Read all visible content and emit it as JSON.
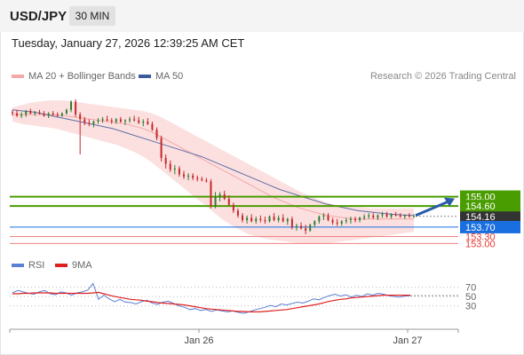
{
  "header": {
    "symbol": "USD/JPY",
    "timeframe": "30 MIN",
    "timestamp": "Tuesday, January 27, 2026 12:39:25 AM CET"
  },
  "legend": {
    "ma20": "MA 20 + Bollinger Bands",
    "ma50": "MA 50",
    "copyright": "Research © 2026 Trading Central",
    "rsi": "RSI",
    "ma9": "9MA"
  },
  "colors": {
    "bull": "#2e7d32",
    "bear": "#c62828",
    "band": "#fbd5d5",
    "ma20": "#f4a8a8",
    "ma50": "#5d6fa6",
    "green_level": "#4a9d00",
    "blue_level": "#1a6fe0",
    "red_level": "#f08080",
    "current_price": "#333333",
    "rsi_line": "#5b7fd4",
    "rsi_ma": "#e02020",
    "arrow": "#2a5ca8"
  },
  "chart_data": [
    {
      "type": "candlestick",
      "title": "USD/JPY 30 MIN",
      "ylim": [
        152.6,
        159.6
      ],
      "x_ticks": [
        "Jan 26",
        "Jan 27"
      ],
      "price_labels": [
        {
          "value": 155.0,
          "text": "155.00",
          "kind": "resistance"
        },
        {
          "value": 154.6,
          "text": "154.60",
          "kind": "resistance"
        },
        {
          "value": 154.16,
          "text": "154.16",
          "kind": "current"
        },
        {
          "value": 153.7,
          "text": "153.70",
          "kind": "pivot"
        },
        {
          "value": 153.3,
          "text": "153.30",
          "kind": "support"
        },
        {
          "value": 153.0,
          "text": "153.00",
          "kind": "support"
        }
      ],
      "candles": [
        [
          158.6,
          158.7,
          158.45,
          158.55
        ],
        [
          158.55,
          158.7,
          158.4,
          158.45
        ],
        [
          158.45,
          158.6,
          158.35,
          158.5
        ],
        [
          158.5,
          158.7,
          158.4,
          158.65
        ],
        [
          158.65,
          158.75,
          158.5,
          158.55
        ],
        [
          158.55,
          158.65,
          158.45,
          158.6
        ],
        [
          158.6,
          158.7,
          158.5,
          158.55
        ],
        [
          158.55,
          158.65,
          158.4,
          158.45
        ],
        [
          158.45,
          158.6,
          158.35,
          158.55
        ],
        [
          158.55,
          158.65,
          158.45,
          158.5
        ],
        [
          158.5,
          158.6,
          158.4,
          158.45
        ],
        [
          158.45,
          158.6,
          158.4,
          158.55
        ],
        [
          158.55,
          158.75,
          158.5,
          158.7
        ],
        [
          158.7,
          159.1,
          158.6,
          159.05
        ],
        [
          159.05,
          159.15,
          158.4,
          158.5
        ],
        [
          158.5,
          158.6,
          156.8,
          158.3
        ],
        [
          158.3,
          158.4,
          158.05,
          158.15
        ],
        [
          158.15,
          158.3,
          158.0,
          158.1
        ],
        [
          158.1,
          158.25,
          157.95,
          158.2
        ],
        [
          158.2,
          158.35,
          158.1,
          158.25
        ],
        [
          158.25,
          158.4,
          158.15,
          158.3
        ],
        [
          158.3,
          158.45,
          158.2,
          158.25
        ],
        [
          158.25,
          158.35,
          158.1,
          158.2
        ],
        [
          158.2,
          158.35,
          158.1,
          158.3
        ],
        [
          158.3,
          158.4,
          158.15,
          158.2
        ],
        [
          158.2,
          158.3,
          158.05,
          158.25
        ],
        [
          158.25,
          158.4,
          158.15,
          158.3
        ],
        [
          158.3,
          158.45,
          158.2,
          158.25
        ],
        [
          158.25,
          158.4,
          158.1,
          158.15
        ],
        [
          158.15,
          158.3,
          158.0,
          158.2
        ],
        [
          158.2,
          158.35,
          158.05,
          158.1
        ],
        [
          158.1,
          158.2,
          157.8,
          157.85
        ],
        [
          157.85,
          157.95,
          157.4,
          157.5
        ],
        [
          157.5,
          157.6,
          156.5,
          156.65
        ],
        [
          156.65,
          156.8,
          156.2,
          156.4
        ],
        [
          156.4,
          156.55,
          156.05,
          156.15
        ],
        [
          156.15,
          156.35,
          155.95,
          156.2
        ],
        [
          156.2,
          156.3,
          155.85,
          155.95
        ],
        [
          155.95,
          156.1,
          155.75,
          155.85
        ],
        [
          155.85,
          156.0,
          155.7,
          155.9
        ],
        [
          155.9,
          156.0,
          155.7,
          155.8
        ],
        [
          155.8,
          155.9,
          155.65,
          155.75
        ],
        [
          155.75,
          155.85,
          155.65,
          155.7
        ],
        [
          155.7,
          155.8,
          155.6,
          155.65
        ],
        [
          155.65,
          155.75,
          154.5,
          154.6
        ],
        [
          154.6,
          155.2,
          154.5,
          155.0
        ],
        [
          155.0,
          155.2,
          154.8,
          155.1
        ],
        [
          155.1,
          155.25,
          154.85,
          154.9
        ],
        [
          154.9,
          155.05,
          154.6,
          154.65
        ],
        [
          154.65,
          154.75,
          154.3,
          154.4
        ],
        [
          154.4,
          154.5,
          154.1,
          154.2
        ],
        [
          154.2,
          154.3,
          153.9,
          154.0
        ],
        [
          154.0,
          154.2,
          153.85,
          154.1
        ],
        [
          154.1,
          154.25,
          153.9,
          153.95
        ],
        [
          153.95,
          154.15,
          153.85,
          154.05
        ],
        [
          154.05,
          154.2,
          153.9,
          154.0
        ],
        [
          154.0,
          154.15,
          153.85,
          153.95
        ],
        [
          153.95,
          154.2,
          153.9,
          154.15
        ],
        [
          154.15,
          154.3,
          153.95,
          154.0
        ],
        [
          154.0,
          154.2,
          153.9,
          154.1
        ],
        [
          154.1,
          154.25,
          153.9,
          153.95
        ],
        [
          153.95,
          154.1,
          153.8,
          154.05
        ],
        [
          154.05,
          154.15,
          153.6,
          153.7
        ],
        [
          153.7,
          153.85,
          153.55,
          153.75
        ],
        [
          153.75,
          153.9,
          153.6,
          153.65
        ],
        [
          153.65,
          153.8,
          153.4,
          153.55
        ],
        [
          153.55,
          153.85,
          153.5,
          153.8
        ],
        [
          153.8,
          154.0,
          153.7,
          153.95
        ],
        [
          153.95,
          154.2,
          153.85,
          154.15
        ],
        [
          154.15,
          154.3,
          154.0,
          154.2
        ],
        [
          154.2,
          154.3,
          153.95,
          154.0
        ],
        [
          154.0,
          154.1,
          153.8,
          153.9
        ],
        [
          153.9,
          154.05,
          153.75,
          153.85
        ],
        [
          153.85,
          154.0,
          153.75,
          153.95
        ],
        [
          153.95,
          154.1,
          153.85,
          154.0
        ],
        [
          154.0,
          154.15,
          153.85,
          154.05
        ],
        [
          154.05,
          154.15,
          153.9,
          154.0
        ],
        [
          154.0,
          154.15,
          153.9,
          154.1
        ],
        [
          154.1,
          154.25,
          154.0,
          154.15
        ],
        [
          154.15,
          154.3,
          154.05,
          154.2
        ],
        [
          154.2,
          154.3,
          154.05,
          154.1
        ],
        [
          154.1,
          154.25,
          154.0,
          154.2
        ],
        [
          154.2,
          154.35,
          154.1,
          154.25
        ],
        [
          154.25,
          154.35,
          154.1,
          154.15
        ],
        [
          154.15,
          154.3,
          154.05,
          154.25
        ],
        [
          154.25,
          154.35,
          154.15,
          154.2
        ],
        [
          154.2,
          154.3,
          154.1,
          154.15
        ],
        [
          154.15,
          154.25,
          154.05,
          154.2
        ],
        [
          154.2,
          154.3,
          154.1,
          154.15
        ],
        [
          154.15,
          154.25,
          154.1,
          154.16
        ]
      ],
      "bollinger": {
        "upper": [
          158.8,
          158.9,
          159.0,
          159.05,
          159.1,
          159.1,
          159.1,
          159.05,
          159.0,
          158.95,
          158.9,
          158.85,
          158.8,
          158.75,
          158.7,
          158.65,
          158.55,
          158.4,
          158.2,
          158.0,
          157.8,
          157.6,
          157.4,
          157.2,
          157.0,
          156.8,
          156.6,
          156.4,
          156.2,
          156.0,
          155.8,
          155.6,
          155.4,
          155.2,
          155.05,
          154.9,
          154.75,
          154.65,
          154.6,
          154.55,
          154.55,
          154.5,
          154.5,
          154.5,
          154.5,
          154.5,
          154.5
        ],
        "middle": [
          158.5,
          158.5,
          158.5,
          158.5,
          158.5,
          158.48,
          158.45,
          158.4,
          158.35,
          158.3,
          158.25,
          158.2,
          158.15,
          158.1,
          158.0,
          157.9,
          157.75,
          157.55,
          157.35,
          157.15,
          156.95,
          156.75,
          156.55,
          156.35,
          156.15,
          155.95,
          155.75,
          155.55,
          155.35,
          155.15,
          154.95,
          154.8,
          154.65,
          154.5,
          154.4,
          154.3,
          154.2,
          154.15,
          154.1,
          154.05,
          154.05,
          154.05,
          154.05,
          154.05,
          154.05,
          154.05,
          154.05
        ],
        "lower": [
          158.2,
          158.1,
          158.05,
          158.0,
          157.95,
          157.9,
          157.8,
          157.7,
          157.6,
          157.5,
          157.4,
          157.3,
          157.2,
          157.05,
          156.9,
          156.7,
          156.45,
          156.15,
          155.85,
          155.55,
          155.25,
          154.95,
          154.65,
          154.35,
          154.05,
          153.8,
          153.6,
          153.4,
          153.3,
          153.2,
          153.15,
          153.1,
          153.05,
          153.0,
          153.0,
          153.0,
          153.0,
          153.05,
          153.1,
          153.15,
          153.2,
          153.25,
          153.3,
          153.35,
          153.4,
          153.45,
          153.5
        ]
      },
      "ma50": [
        158.7,
        158.65,
        158.6,
        158.5,
        158.4,
        158.3,
        158.2,
        158.1,
        158.0,
        157.9,
        157.75,
        157.6,
        157.45,
        157.3,
        157.15,
        157.0,
        156.85,
        156.7,
        156.5,
        156.3,
        156.1,
        155.9,
        155.7,
        155.5,
        155.3,
        155.15,
        155.0,
        154.85,
        154.7,
        154.6,
        154.5,
        154.4,
        154.35,
        154.3,
        154.25,
        154.22,
        154.2
      ],
      "levels": [
        {
          "value": 155.0,
          "kind": "green"
        },
        {
          "value": 154.6,
          "kind": "green"
        },
        {
          "value": 153.7,
          "kind": "blue"
        },
        {
          "value": 153.3,
          "kind": "red"
        },
        {
          "value": 153.0,
          "kind": "red"
        }
      ],
      "forecast_target": 155.0
    },
    {
      "type": "line",
      "title": "RSI",
      "ylim": [
        0,
        100
      ],
      "y_ticks": [
        30,
        50,
        70
      ],
      "series": [
        {
          "name": "RSI",
          "values": [
            58,
            63,
            60,
            57,
            55,
            60,
            63,
            56,
            54,
            60,
            58,
            53,
            58,
            60,
            64,
            78,
            44,
            53,
            45,
            39,
            44,
            38,
            37,
            34,
            39,
            42,
            36,
            33,
            38,
            40,
            35,
            30,
            27,
            22,
            24,
            20,
            22,
            18,
            21,
            19,
            17,
            19,
            16,
            14,
            17,
            21,
            24,
            27,
            31,
            28,
            34,
            32,
            35,
            38,
            36,
            40,
            45,
            43,
            48,
            52,
            55,
            51,
            54,
            49,
            53,
            50,
            56,
            53,
            57,
            55,
            52,
            50,
            49,
            51,
            52
          ]
        },
        {
          "name": "9MA",
          "values": [
            56,
            56,
            57,
            57,
            58,
            58,
            58,
            58,
            57,
            57,
            57,
            57,
            57,
            57,
            57,
            58,
            59,
            56,
            53,
            50,
            48,
            46,
            44,
            43,
            42,
            40,
            39,
            37,
            36,
            35,
            34,
            33,
            32,
            30,
            28,
            26,
            24,
            23,
            22,
            21,
            20,
            19,
            18,
            18,
            17,
            17,
            17,
            18,
            19,
            20,
            21,
            22,
            24,
            26,
            28,
            30,
            32,
            34,
            37,
            40,
            42,
            44,
            45,
            47,
            48,
            49,
            50,
            51,
            52,
            53,
            53,
            53,
            53,
            53,
            53
          ]
        }
      ]
    }
  ]
}
